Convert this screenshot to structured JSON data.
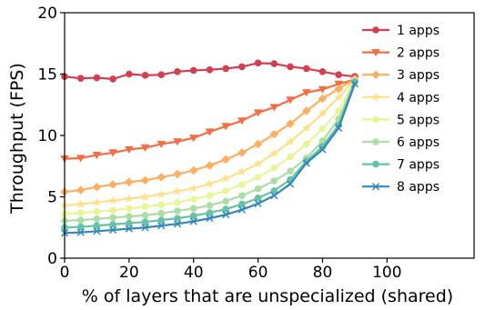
{
  "chart_data": {
    "type": "line",
    "title": "",
    "xlabel": "% of layers that are unspecialized (shared)",
    "ylabel": "Throughput (FPS)",
    "xlim": [
      0,
      127
    ],
    "ylim": [
      0,
      20
    ],
    "xticks": [
      0,
      20,
      40,
      60,
      80,
      100
    ],
    "yticks": [
      0,
      5,
      10,
      15,
      20
    ],
    "grid": false,
    "legend_position": "top-right",
    "x": [
      0,
      5,
      10,
      15,
      20,
      25,
      30,
      35,
      40,
      45,
      50,
      55,
      60,
      65,
      70,
      75,
      80,
      85,
      90
    ],
    "series": [
      {
        "name": "1 apps",
        "color": "#d53e4f",
        "marker": "circle",
        "values": [
          14.8,
          14.65,
          14.7,
          14.6,
          15.0,
          14.9,
          14.95,
          15.2,
          15.3,
          15.35,
          15.45,
          15.6,
          15.9,
          15.85,
          15.6,
          15.45,
          15.2,
          14.95,
          14.8
        ]
      },
      {
        "name": "2 apps",
        "color": "#f46d43",
        "marker": "triangle-down",
        "values": [
          8.1,
          8.15,
          8.4,
          8.6,
          8.85,
          9.0,
          9.3,
          9.5,
          9.8,
          10.3,
          10.75,
          11.2,
          11.85,
          12.3,
          12.9,
          13.5,
          13.75,
          14.2,
          14.55
        ]
      },
      {
        "name": "3 apps",
        "color": "#fdae61",
        "marker": "diamond",
        "values": [
          5.4,
          5.55,
          5.8,
          6.0,
          6.2,
          6.35,
          6.6,
          6.85,
          7.15,
          7.55,
          8.05,
          8.6,
          9.3,
          10.1,
          10.95,
          12.0,
          13.0,
          13.8,
          14.6
        ]
      },
      {
        "name": "4 apps",
        "color": "#fee08b",
        "marker": "star",
        "values": [
          4.3,
          4.4,
          4.55,
          4.7,
          4.85,
          5.0,
          5.2,
          5.45,
          5.7,
          6.05,
          6.5,
          7.05,
          7.7,
          8.55,
          9.5,
          10.6,
          11.8,
          13.1,
          14.55
        ]
      },
      {
        "name": "5 apps",
        "color": "#e6f598",
        "marker": "circle",
        "values": [
          3.6,
          3.7,
          3.8,
          3.9,
          4.05,
          4.2,
          4.35,
          4.55,
          4.8,
          5.1,
          5.5,
          6.0,
          6.6,
          7.35,
          8.25,
          9.3,
          10.55,
          12.0,
          14.5
        ]
      },
      {
        "name": "6 apps",
        "color": "#abdda4",
        "marker": "circle",
        "values": [
          3.05,
          3.1,
          3.2,
          3.3,
          3.4,
          3.5,
          3.65,
          3.85,
          4.05,
          4.3,
          4.65,
          5.1,
          5.65,
          6.3,
          7.1,
          8.15,
          9.55,
          11.35,
          14.45
        ]
      },
      {
        "name": "7 apps",
        "color": "#66c2a5",
        "marker": "circle",
        "values": [
          2.5,
          2.55,
          2.65,
          2.75,
          2.85,
          2.95,
          3.1,
          3.25,
          3.45,
          3.7,
          4.0,
          4.4,
          4.9,
          5.5,
          6.4,
          7.9,
          9.1,
          10.85,
          14.35
        ]
      },
      {
        "name": "8 apps",
        "color": "#3288bd",
        "marker": "x",
        "values": [
          2.05,
          2.1,
          2.2,
          2.3,
          2.4,
          2.5,
          2.65,
          2.8,
          3.0,
          3.25,
          3.55,
          3.95,
          4.45,
          5.1,
          6.05,
          7.75,
          8.85,
          10.6,
          14.2
        ]
      }
    ]
  }
}
